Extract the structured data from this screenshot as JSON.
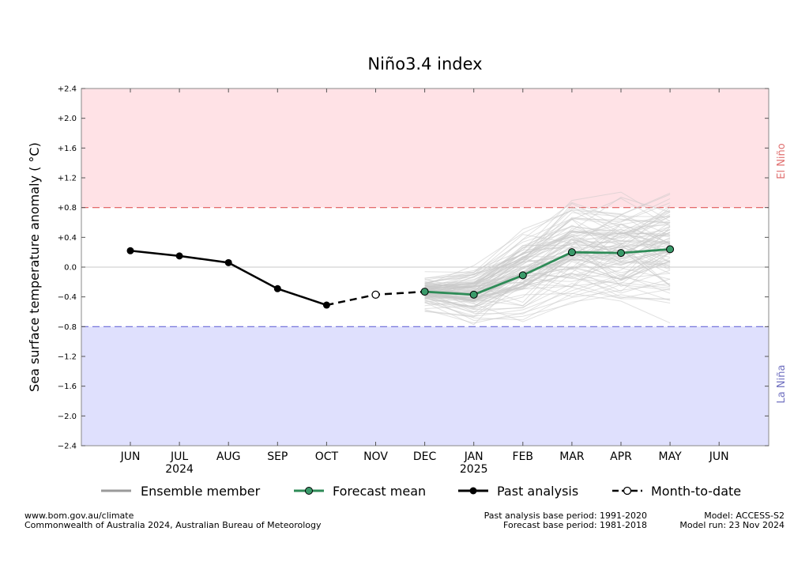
{
  "colors": {
    "el_nino_band": "#ffe2e6",
    "la_nina_band": "#dfe0fd",
    "el_nino_line": "#e05a5a",
    "la_nina_line": "#6a6ad8",
    "el_nino_text": "#e07070",
    "la_nina_text": "#7070c0",
    "forecast": "#2e8b57",
    "forecast_marker": "#3a9a6a",
    "ensemble": "#c8c8c8",
    "past": "#000000"
  },
  "chart_data": {
    "type": "line",
    "title": "Niño3.4 index",
    "ylabel": "Sea surface temperature anomaly ( °C)",
    "xlabel": "",
    "ylim": [
      -2.4,
      2.4
    ],
    "yticks": [
      2.4,
      2.0,
      1.6,
      1.2,
      0.8,
      0.4,
      0.0,
      -0.4,
      -0.8,
      -1.2,
      -1.6,
      -2.0,
      -2.4
    ],
    "ytick_labels": [
      "+2.4",
      "+2.0",
      "+1.6",
      "+1.2",
      "+0.8",
      "+0.4",
      "0.0",
      "−0.4",
      "−0.8",
      "−1.2",
      "−1.6",
      "−2.0",
      "−2.4"
    ],
    "categories": [
      "JUN",
      "JUL",
      "AUG",
      "SEP",
      "OCT",
      "NOV",
      "DEC",
      "JAN",
      "FEB",
      "MAR",
      "APR",
      "MAY",
      "JUN"
    ],
    "year_labels": [
      {
        "index": 1,
        "text": "2024"
      },
      {
        "index": 7,
        "text": "2025"
      }
    ],
    "thresholds": [
      {
        "name": "El Niño",
        "value": 0.8,
        "band": [
          0.8,
          2.4
        ]
      },
      {
        "name": "La Niña",
        "value": -0.8,
        "band": [
          -2.4,
          -0.8
        ]
      }
    ],
    "series": [
      {
        "name": "Past analysis",
        "x": [
          0,
          1,
          2,
          3,
          4
        ],
        "values": [
          0.22,
          0.15,
          0.06,
          -0.29,
          -0.51
        ]
      },
      {
        "name": "Month-to-date",
        "x": [
          4,
          5,
          6
        ],
        "values": [
          -0.51,
          -0.37,
          -0.33
        ]
      },
      {
        "name": "Forecast mean",
        "x": [
          6,
          7,
          8,
          9,
          10,
          11
        ],
        "values": [
          -0.33,
          -0.37,
          -0.11,
          0.2,
          0.19,
          0.24
        ]
      },
      {
        "name": "Ensemble member",
        "x": [
          6,
          7,
          8,
          9,
          10,
          11
        ],
        "spread": [
          0.2,
          0.3,
          0.45,
          0.55,
          0.55,
          0.6
        ],
        "count": 99
      }
    ],
    "legend": {
      "placement": "bottom",
      "entries": [
        "Ensemble member",
        "Forecast mean",
        "Past analysis",
        "Month-to-date"
      ]
    }
  },
  "footer": {
    "left_line1": "www.bom.gov.au/climate",
    "left_line2": "Commonwealth of Australia 2024, Australian Bureau of Meteorology",
    "mid_line1": "Past analysis base period: 1991-2020",
    "mid_line2": "Forecast base period: 1981-2018",
    "right_line1": "Model: ACCESS-S2",
    "right_line2": "Model run: 23 Nov 2024"
  }
}
